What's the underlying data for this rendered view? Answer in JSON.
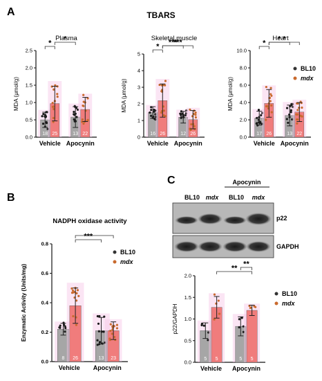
{
  "figure": {
    "title": "TBARS",
    "panel_letters": [
      "A",
      "B",
      "C"
    ],
    "legend": [
      {
        "label": "BL10",
        "italic": false,
        "color": "#333333"
      },
      {
        "label": "mdx",
        "italic": true,
        "color": "#c96a2e"
      }
    ],
    "colors": {
      "bl10_bar": "#a6a6a6",
      "mdx_bar": "#f07c7c",
      "bl10_dot": "#1a1a1a",
      "mdx_dot": "#c96a2e",
      "halo": "#f6c6e6"
    }
  },
  "chart_data": [
    {
      "panel": "A",
      "type": "bar",
      "title": "Plasma",
      "ylabel": "MDA (μmol/g)",
      "ylim": [
        0,
        2.5
      ],
      "yticks": [
        "0.0",
        "0.5",
        "1.0",
        "1.5",
        "2.0",
        "2.5"
      ],
      "categories": [
        "Vehicle",
        "Apocynin"
      ],
      "series": [
        {
          "name": "BL10",
          "values": [
            0.5,
            0.58
          ],
          "errors": [
            0.22,
            0.3
          ],
          "n": [
            "18",
            "13"
          ]
        },
        {
          "name": "mdx",
          "values": [
            0.97,
            0.8
          ],
          "errors": [
            0.5,
            0.35
          ],
          "n": [
            "25",
            "22"
          ]
        }
      ],
      "significance": [
        {
          "pair": [
            [
              0,
              0
            ],
            [
              0,
              1
            ]
          ],
          "label": "*"
        },
        {
          "pair": [
            [
              0,
              1
            ],
            [
              1,
              0
            ]
          ],
          "label": "*"
        }
      ]
    },
    {
      "panel": "A",
      "type": "bar",
      "title": "Skeletal muscle",
      "ylabel": "MDA (μmol/g)",
      "ylim": [
        0,
        5
      ],
      "yticks": [
        "0",
        "1",
        "2",
        "3",
        "4",
        "5"
      ],
      "categories": [
        "Vehicle",
        "Apocynin"
      ],
      "series": [
        {
          "name": "BL10",
          "values": [
            1.48,
            1.2
          ],
          "errors": [
            0.35,
            0.35
          ],
          "n": [
            "16",
            "12"
          ]
        },
        {
          "name": "mdx",
          "values": [
            2.2,
            1.05
          ],
          "errors": [
            1.0,
            0.55
          ],
          "n": [
            "26",
            "26"
          ]
        }
      ],
      "significance": [
        {
          "pair": [
            [
              0,
              0
            ],
            [
              0,
              1
            ]
          ],
          "label": "*"
        },
        {
          "pair": [
            [
              0,
              1
            ],
            [
              1,
              0
            ]
          ],
          "label": "***"
        },
        {
          "pair": [
            [
              0,
              1
            ],
            [
              1,
              1
            ]
          ],
          "label": "***"
        }
      ]
    },
    {
      "panel": "A",
      "type": "bar",
      "title": "Heart",
      "ylabel": "MDA (μmol/g)",
      "ylim": [
        0,
        10
      ],
      "yticks": [
        "0.0",
        "2.0",
        "4.0",
        "6.0",
        "8.0",
        "10.0"
      ],
      "categories": [
        "Vehicle",
        "Apocynin"
      ],
      "series": [
        {
          "name": "BL10",
          "values": [
            2.2,
            2.5
          ],
          "errors": [
            0.8,
            1.2
          ],
          "n": [
            "17",
            "13"
          ]
        },
        {
          "name": "mdx",
          "values": [
            3.9,
            2.9
          ],
          "errors": [
            1.6,
            1.1
          ],
          "n": [
            "26",
            "22"
          ]
        }
      ],
      "significance": [
        {
          "pair": [
            [
              0,
              0
            ],
            [
              0,
              1
            ]
          ],
          "label": "*"
        },
        {
          "pair": [
            [
              0,
              1
            ],
            [
              1,
              0
            ]
          ],
          "label": "*"
        },
        {
          "pair": [
            [
              0,
              1
            ],
            [
              1,
              1
            ]
          ],
          "label": "*"
        }
      ]
    },
    {
      "panel": "B",
      "type": "bar",
      "title": "NADPH oxidase activity",
      "ylabel": "Enzymatic Activity (Units/mg)",
      "ylim": [
        0,
        0.8
      ],
      "yticks": [
        "0.0",
        "0.2",
        "0.4",
        "0.6",
        "0.8"
      ],
      "categories": [
        "Vehicle",
        "Apocynin"
      ],
      "series": [
        {
          "name": "BL10",
          "values": [
            0.22,
            0.21
          ],
          "errors": [
            0.04,
            0.09
          ],
          "n": [
            "8",
            "13"
          ]
        },
        {
          "name": "mdx",
          "values": [
            0.38,
            0.21
          ],
          "errors": [
            0.12,
            0.06
          ],
          "n": [
            "26",
            "23"
          ]
        }
      ],
      "significance": [
        {
          "pair": [
            [
              0,
              1
            ],
            [
              1,
              0
            ]
          ],
          "label": "***"
        },
        {
          "pair": [
            [
              0,
              1
            ],
            [
              1,
              1
            ]
          ],
          "label": ""
        }
      ]
    },
    {
      "panel": "C",
      "type": "bar",
      "title": "",
      "ylabel": "p22/GAPDH",
      "ylim": [
        0,
        2.0
      ],
      "yticks": [
        "0.0",
        "0.5",
        "1.0",
        "1.5",
        "2.0"
      ],
      "categories": [
        "Vehicle",
        "Apocynin"
      ],
      "series": [
        {
          "name": "BL10",
          "values": [
            0.73,
            0.83
          ],
          "errors": [
            0.18,
            0.22
          ],
          "n": [
            "5",
            "5"
          ]
        },
        {
          "name": "mdx",
          "values": [
            1.27,
            1.2
          ],
          "errors": [
            0.25,
            0.12
          ],
          "n": [
            "5",
            "5"
          ]
        }
      ],
      "significance": [
        {
          "pair": [
            [
              0,
              1
            ],
            [
              1,
              1
            ]
          ],
          "label": "**"
        },
        {
          "pair": [
            [
              1,
              0
            ],
            [
              1,
              1
            ]
          ],
          "label": "**"
        }
      ]
    }
  ],
  "blot": {
    "header": "Apocynin",
    "lanes": [
      "BL10",
      "mdx",
      "BL10",
      "mdx"
    ],
    "bands": [
      "p22",
      "GAPDH"
    ]
  }
}
